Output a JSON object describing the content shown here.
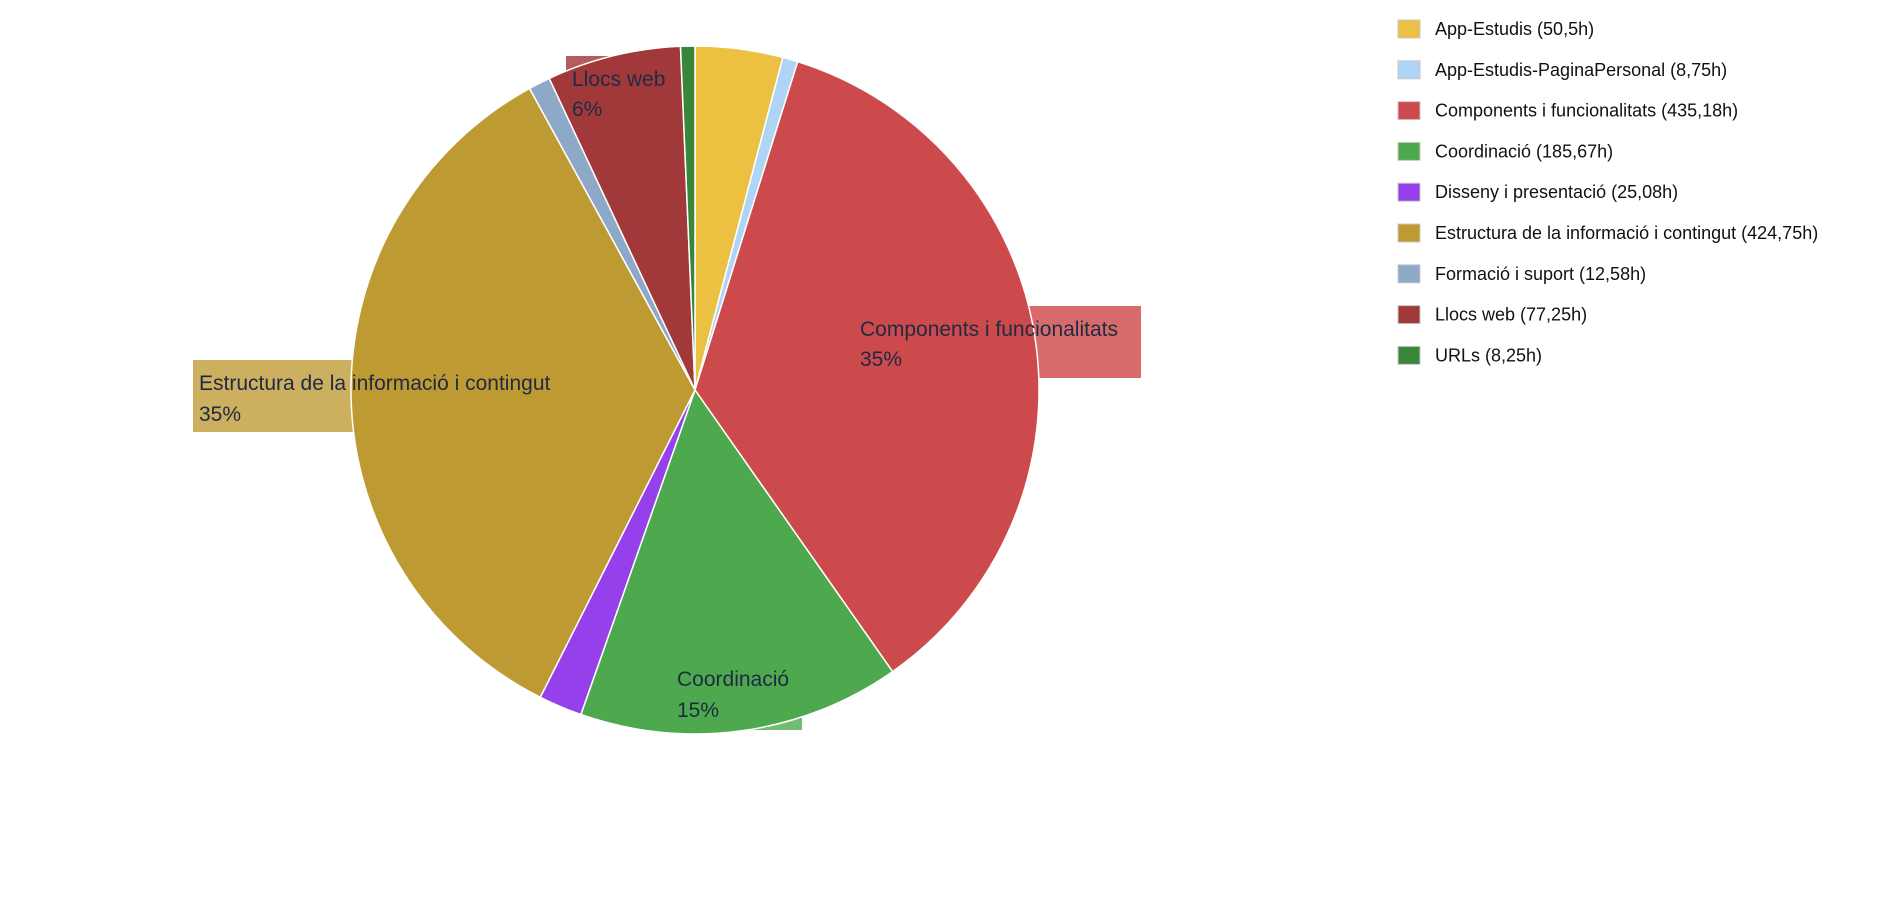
{
  "chart_data": {
    "type": "pie",
    "title": "",
    "legend_position": "top-right",
    "slices": [
      {
        "name": "App-Estudis",
        "value": 50.5,
        "legend": "App-Estudis (50,5h)",
        "color": "#ECC142",
        "label": "",
        "percent": ""
      },
      {
        "name": "App-Estudis-PaginaPersonal",
        "value": 8.75,
        "legend": "App-Estudis-PaginaPersonal (8,75h)",
        "color": "#AED5F5",
        "label": "",
        "percent": ""
      },
      {
        "name": "Components i funcionalitats",
        "value": 435.18,
        "legend": "Components i funcionalitats (435,18h)",
        "color": "#CC4A4B",
        "label": "Components i funcionalitats",
        "percent": "35%",
        "label_bg": "#D86A6A"
      },
      {
        "name": "Coordinació",
        "value": 185.67,
        "legend": "Coordinació (185,67h)",
        "color": "#4EA84E",
        "label": "Coordinació",
        "percent": "15%",
        "label_bg": "#74BC74"
      },
      {
        "name": "Disseny i presentació",
        "value": 25.08,
        "legend": "Disseny i presentació (25,08h)",
        "color": "#9540EA",
        "label": "",
        "percent": ""
      },
      {
        "name": "Estructura de la informació i contingut",
        "value": 424.75,
        "legend": "Estructura de la informació i contingut (424,75h)",
        "color": "#BE9A33",
        "label": "Estructura de la informació i contingut",
        "percent": "35%",
        "label_bg": "#CCAF5F"
      },
      {
        "name": "Formació i suport",
        "value": 12.58,
        "legend": "Formació i suport (12,58h)",
        "color": "#8EA9C8",
        "label": "",
        "percent": ""
      },
      {
        "name": "Llocs web",
        "value": 77.25,
        "legend": "Llocs web (77,25h)",
        "color": "#A1393B",
        "label": "Llocs web",
        "percent": "6%",
        "label_bg": "#B45D60"
      },
      {
        "name": "URLs",
        "value": 8.25,
        "legend": "URLs (8,25h)",
        "color": "#3A873A",
        "label": "",
        "percent": ""
      }
    ]
  }
}
